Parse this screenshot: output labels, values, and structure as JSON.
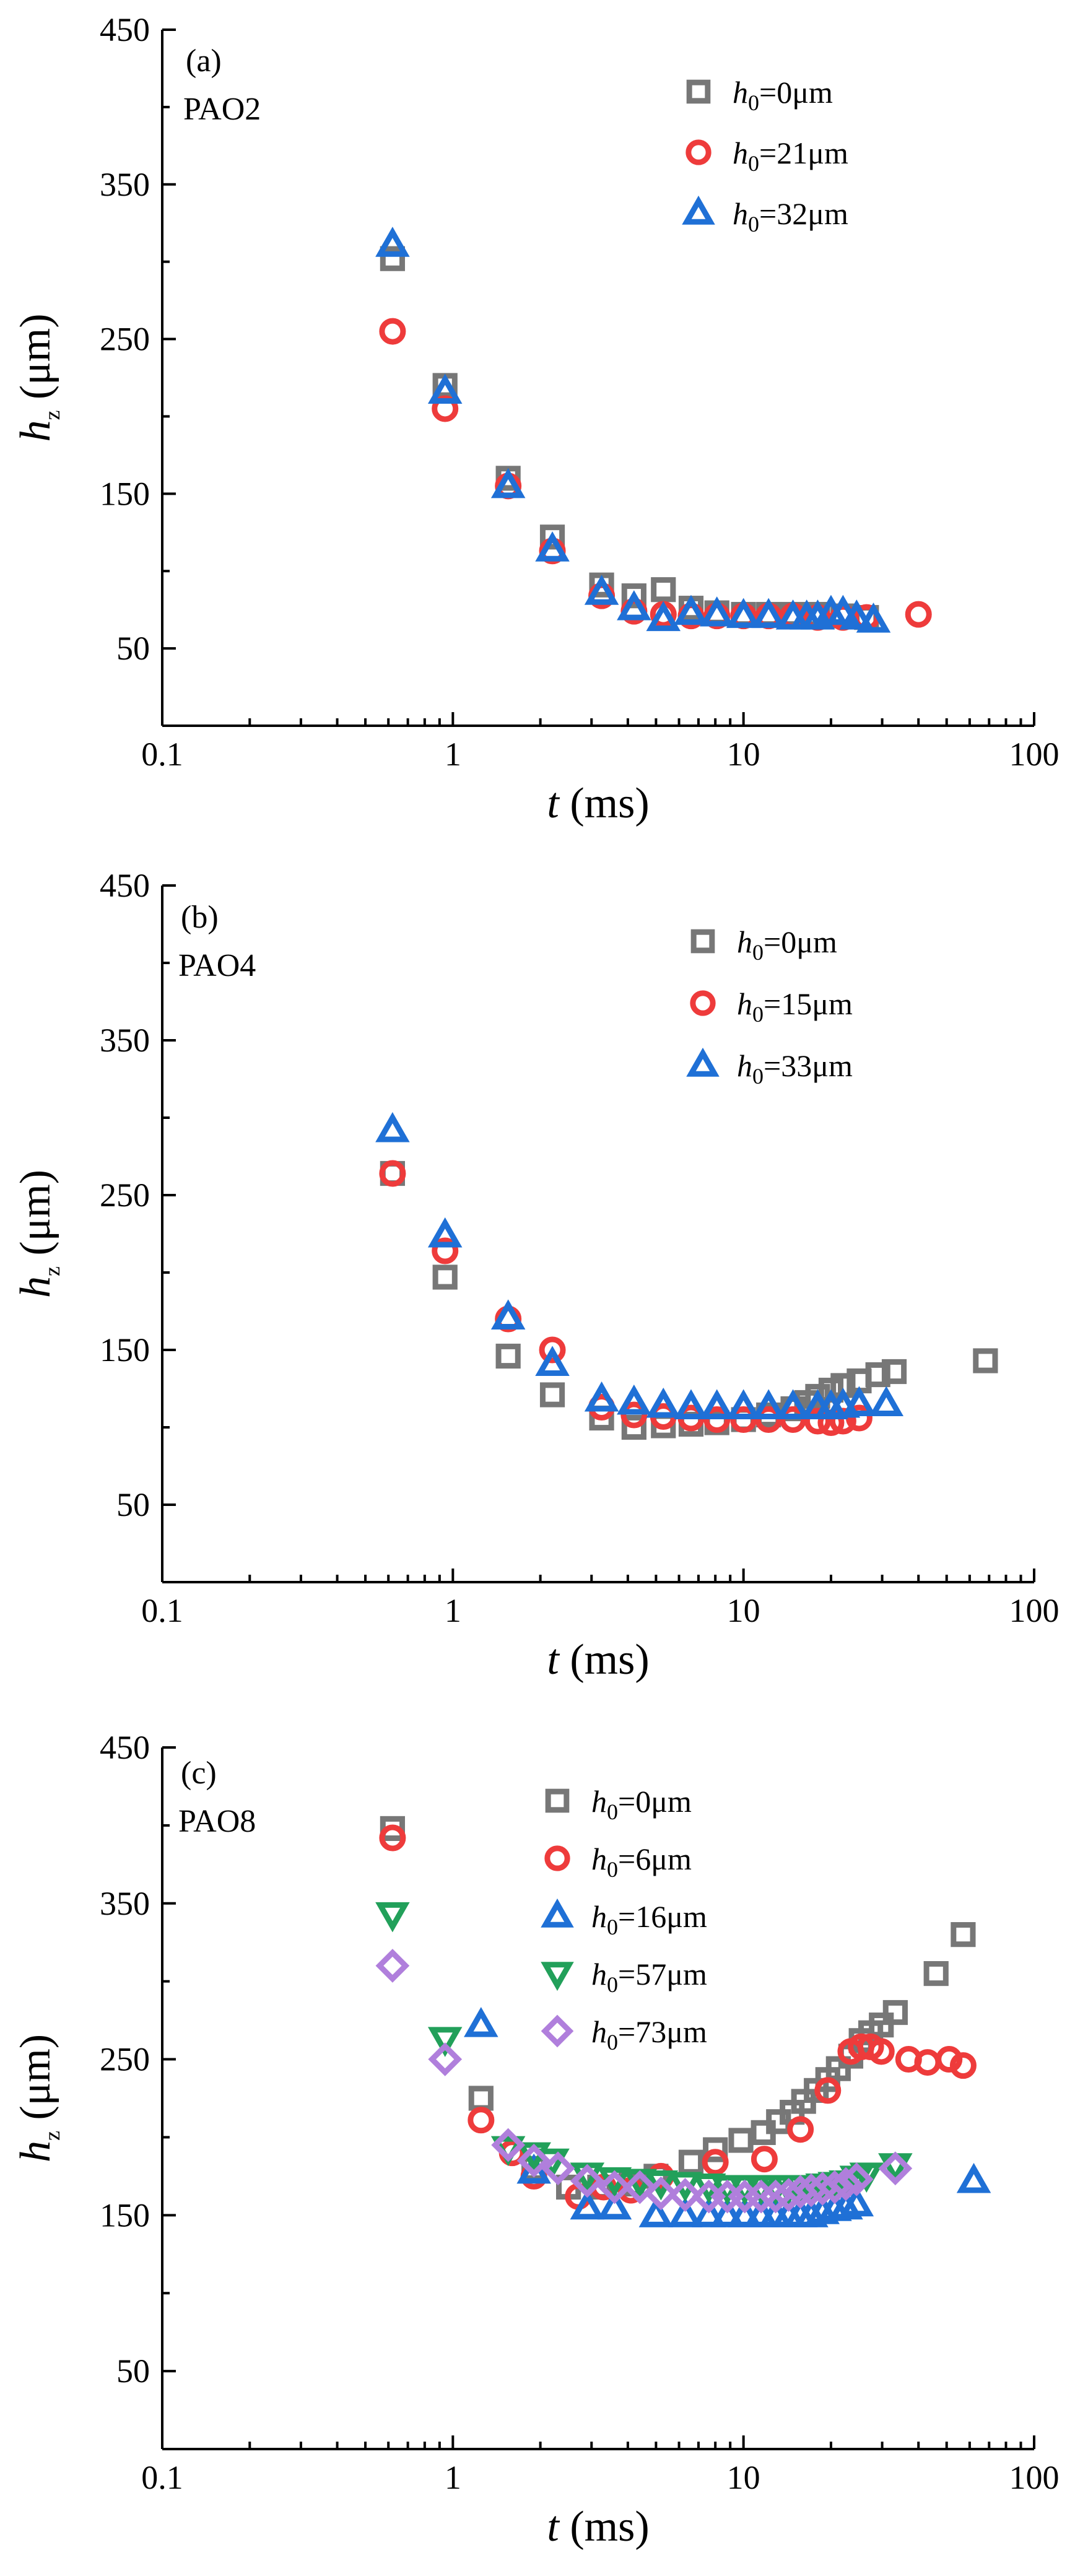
{
  "figure": {
    "panels_count": 3
  },
  "chart_data": [
    {
      "type": "scatter",
      "panel_label": "(a)",
      "fluid": "PAO2",
      "xscale": "log",
      "xlim": [
        0.1,
        100
      ],
      "ylim": [
        0,
        450
      ],
      "x_ticks": [
        0.1,
        1,
        10,
        100
      ],
      "x_tick_labels": [
        "0.1",
        "1",
        "10",
        "100"
      ],
      "y_ticks": [
        50,
        150,
        250,
        350,
        450
      ],
      "y_tick_labels": [
        "50",
        "150",
        "250",
        "350",
        "450"
      ],
      "xlabel": {
        "var": "t",
        "unit": " (ms)"
      },
      "ylabel": {
        "var": "h",
        "sub": "z",
        "unit": " (μm)"
      },
      "legend_position": "top-right",
      "series": [
        {
          "name": "h0=0μm",
          "label_var": "h",
          "label_sub": "0",
          "label_rest": "=0μm",
          "marker": "square",
          "color": "#777777",
          "x": [
            0.62,
            0.94,
            1.55,
            2.2,
            3.25,
            4.2,
            5.3,
            6.6,
            8.1,
            10,
            12.2,
            14.8,
            18,
            22,
            26.5
          ],
          "y": [
            302,
            220,
            160,
            122,
            91,
            84,
            88,
            76,
            73,
            72,
            72,
            72,
            72,
            71,
            70
          ]
        },
        {
          "name": "h0=21μm",
          "label_var": "h",
          "label_sub": "0",
          "label_rest": "=21μm",
          "marker": "circle",
          "color": "#ee3b3b",
          "x": [
            0.62,
            0.94,
            1.55,
            2.2,
            3.25,
            4.2,
            5.3,
            6.6,
            8.1,
            10,
            12.2,
            14.8,
            18,
            22,
            26.5,
            40
          ],
          "y": [
            255,
            205,
            155,
            113,
            84,
            74,
            72,
            71,
            71,
            71,
            71,
            71,
            70,
            70,
            70,
            72
          ]
        },
        {
          "name": "h0=32μm",
          "label_var": "h",
          "label_sub": "0",
          "label_rest": "=32μm",
          "marker": "triangle-up",
          "color": "#1f70d6",
          "x": [
            0.62,
            0.94,
            1.55,
            2.2,
            3.25,
            4.2,
            5.3,
            6.6,
            8.1,
            10,
            12.2,
            14.8,
            16.5,
            18,
            20,
            22,
            24.5,
            28
          ],
          "y": [
            311,
            216,
            155,
            114,
            86,
            76,
            69,
            73,
            72,
            71,
            71,
            70,
            70,
            70,
            73,
            73,
            70,
            68
          ]
        }
      ]
    },
    {
      "type": "scatter",
      "panel_label": "(b)",
      "fluid": "PAO4",
      "xscale": "log",
      "xlim": [
        0.1,
        100
      ],
      "ylim": [
        0,
        450
      ],
      "x_ticks": [
        0.1,
        1,
        10,
        100
      ],
      "x_tick_labels": [
        "0.1",
        "1",
        "10",
        "100"
      ],
      "y_ticks": [
        50,
        150,
        250,
        350,
        450
      ],
      "y_tick_labels": [
        "50",
        "150",
        "250",
        "350",
        "450"
      ],
      "xlabel": {
        "var": "t",
        "unit": " (ms)"
      },
      "ylabel": {
        "var": "h",
        "sub": "z",
        "unit": " (μm)"
      },
      "legend_position": "top-right",
      "series": [
        {
          "name": "h0=0μm",
          "label_var": "h",
          "label_sub": "0",
          "label_rest": "=0μm",
          "marker": "square",
          "color": "#777777",
          "x": [
            0.62,
            0.94,
            1.55,
            2.2,
            3.25,
            4.2,
            5.3,
            6.6,
            8.1,
            10,
            12.2,
            14.8,
            16.5,
            18,
            20,
            22,
            25,
            29,
            33,
            68
          ],
          "y": [
            264,
            197,
            146,
            121,
            106,
            100,
            101,
            102,
            103,
            105,
            108,
            112,
            116,
            120,
            124,
            127,
            130,
            134,
            136,
            143
          ]
        },
        {
          "name": "h0=15μm",
          "label_var": "h",
          "label_sub": "0",
          "label_rest": "=15μm",
          "marker": "circle",
          "color": "#ee3b3b",
          "x": [
            0.62,
            0.94,
            1.55,
            2.2,
            3.25,
            4.2,
            5.3,
            6.6,
            8.1,
            10,
            12.2,
            14.8,
            18,
            20,
            22,
            25
          ],
          "y": [
            264,
            214,
            170,
            150,
            113,
            108,
            107,
            106,
            105,
            105,
            105,
            105,
            104,
            103,
            104,
            106
          ]
        },
        {
          "name": "h0=33μm",
          "label_var": "h",
          "label_sub": "0",
          "label_rest": "=33μm",
          "marker": "triangle-up",
          "color": "#1f70d6",
          "x": [
            0.62,
            0.94,
            1.55,
            2.2,
            3.25,
            4.2,
            5.3,
            6.6,
            8.1,
            10,
            12.2,
            14.8,
            18,
            20,
            22,
            25,
            31
          ],
          "y": [
            292,
            224,
            171,
            141,
            118,
            116,
            114,
            113,
            113,
            113,
            113,
            113,
            113,
            113,
            114,
            115,
            115
          ]
        }
      ]
    },
    {
      "type": "scatter",
      "panel_label": "(c)",
      "fluid": "PAO8",
      "xscale": "log",
      "xlim": [
        0.1,
        100
      ],
      "ylim": [
        0,
        450
      ],
      "x_ticks": [
        0.1,
        1,
        10,
        100
      ],
      "x_tick_labels": [
        "0.1",
        "1",
        "10",
        "100"
      ],
      "y_ticks": [
        50,
        150,
        250,
        350,
        450
      ],
      "y_tick_labels": [
        "50",
        "150",
        "250",
        "350",
        "450"
      ],
      "xlabel": {
        "var": "t",
        "unit": " (ms)"
      },
      "ylabel": {
        "var": "h",
        "sub": "z",
        "unit": " (μm)"
      },
      "legend_position": "top-center",
      "series": [
        {
          "name": "h0=0μm",
          "label_var": "h",
          "label_sub": "0",
          "label_rest": "=0μm",
          "marker": "square",
          "color": "#777777",
          "x": [
            0.62,
            1.25,
            1.9,
            2.5,
            3.2,
            4.1,
            5.0,
            6.6,
            8.0,
            9.8,
            11.7,
            13.2,
            14.7,
            16.1,
            17.8,
            19.5,
            21.2,
            23.4,
            25.4,
            27.4,
            29.8,
            33.3,
            46,
            57
          ],
          "y": [
            398,
            225,
            180,
            168,
            168,
            170,
            175,
            184,
            192,
            198,
            203,
            210,
            216,
            223,
            230,
            237,
            244,
            252,
            262,
            267,
            272,
            280,
            305,
            330
          ]
        },
        {
          "name": "h0=6μm",
          "label_var": "h",
          "label_sub": "0",
          "label_rest": "=6μm",
          "marker": "circle",
          "color": "#ee3b3b",
          "x": [
            0.62,
            1.25,
            1.6,
            1.9,
            2.7,
            3.3,
            4.1,
            5.2,
            8.0,
            11.8,
            15.7,
            19.5,
            23.4,
            25.4,
            27.4,
            29.8,
            37,
            43,
            51,
            57
          ],
          "y": [
            392,
            211,
            190,
            175,
            162,
            168,
            166,
            175,
            184,
            186,
            205,
            230,
            255,
            258,
            258,
            255,
            250,
            248,
            250,
            246
          ]
        },
        {
          "name": "h0=16μm",
          "label_var": "h",
          "label_sub": "0",
          "label_rest": "=16μm",
          "marker": "triangle-up",
          "color": "#1f70d6",
          "x": [
            1.25,
            1.9,
            2.9,
            3.6,
            5.0,
            6.3,
            7.6,
            8.8,
            10.1,
            11.5,
            12.9,
            14.3,
            15.7,
            17.1,
            18.7,
            20.6,
            22.5,
            24.5,
            62
          ],
          "y": [
            272,
            178,
            155,
            155,
            150,
            150,
            150,
            150,
            150,
            150,
            150,
            150,
            150,
            150,
            152,
            154,
            155,
            157,
            172
          ]
        },
        {
          "name": "h0=57μm",
          "label_var": "h",
          "label_sub": "0",
          "label_rest": "=57μm",
          "marker": "triangle-down",
          "color": "#22a05a",
          "x": [
            0.62,
            0.94,
            1.55,
            1.9,
            2.2,
            2.9,
            3.6,
            4.4,
            5.2,
            6.3,
            7.6,
            8.8,
            10.1,
            11.5,
            12.9,
            14.3,
            15.7,
            17.1,
            18.7,
            20.6,
            22.5,
            24.5,
            26.5,
            33.3
          ],
          "y": [
            343,
            263,
            193,
            189,
            185,
            176,
            173,
            172,
            171,
            170,
            169,
            168,
            168,
            168,
            168,
            168,
            168,
            168,
            169,
            170,
            171,
            174,
            176,
            182
          ]
        },
        {
          "name": "h0=73μm",
          "label_var": "h",
          "label_sub": "0",
          "label_rest": "=73μm",
          "marker": "diamond",
          "color": "#b07fdc",
          "x": [
            0.62,
            0.94,
            1.55,
            1.9,
            2.3,
            2.9,
            3.6,
            4.4,
            5.2,
            6.3,
            7.6,
            8.8,
            10.1,
            11.5,
            12.9,
            14.3,
            15.7,
            17.1,
            18.7,
            20.6,
            22.5,
            24.5,
            33.3
          ],
          "y": [
            310,
            250,
            195,
            185,
            180,
            172,
            168,
            168,
            164,
            163,
            162,
            162,
            162,
            162,
            162,
            163,
            165,
            166,
            167,
            168,
            170,
            173,
            180
          ]
        }
      ]
    }
  ]
}
